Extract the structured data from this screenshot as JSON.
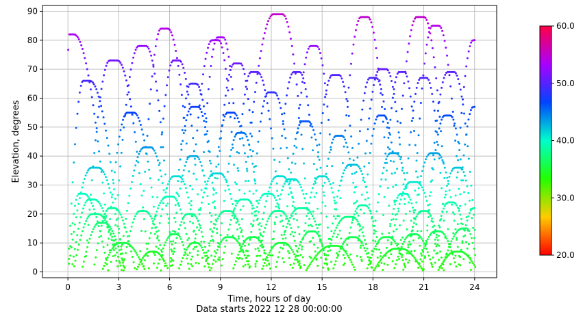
{
  "chart_data": {
    "type": "scatter",
    "xlabel": "Time, hours of day",
    "subtitle": "Data starts 2022 12 28 00:00:00",
    "ylabel": "Elevation, degrees",
    "xlim": [
      -1.5,
      25.3
    ],
    "ylim": [
      -2,
      92
    ],
    "xticks": [
      0,
      3,
      6,
      9,
      12,
      15,
      18,
      21,
      24
    ],
    "yticks": [
      0,
      10,
      20,
      30,
      40,
      50,
      60,
      70,
      80,
      90
    ],
    "grid": true,
    "colorbar": {
      "colormap": "gist_rainbow",
      "range": [
        20,
        60
      ],
      "ticks": [
        "20.0",
        "30.0",
        "40.0",
        "50.0",
        "60.0"
      ]
    },
    "tracks": [
      {
        "start": -0.05,
        "peak_time": 0.2,
        "peak": 82,
        "end": 2.6
      },
      {
        "start": 0.0,
        "peak_time": 1.1,
        "peak": 66,
        "end": 3.3
      },
      {
        "start": 0.0,
        "peak_time": 0.8,
        "peak": 27,
        "end": 2.4
      },
      {
        "start": 0.0,
        "peak_time": 1.6,
        "peak": 36,
        "end": 3.4
      },
      {
        "start": 0.2,
        "peak_time": 1.4,
        "peak": 25,
        "end": 3.0
      },
      {
        "start": 0.3,
        "peak_time": 1.6,
        "peak": 20,
        "end": 3.2
      },
      {
        "start": 0.8,
        "peak_time": 2.0,
        "peak": 17,
        "end": 3.4
      },
      {
        "start": 1.0,
        "peak_time": 2.7,
        "peak": 73,
        "end": 4.8
      },
      {
        "start": 1.5,
        "peak_time": 2.6,
        "peak": 22,
        "end": 4.0
      },
      {
        "start": 2.0,
        "peak_time": 3.2,
        "peak": 10,
        "end": 4.6
      },
      {
        "start": 2.2,
        "peak_time": 3.7,
        "peak": 55,
        "end": 5.5
      },
      {
        "start": 2.6,
        "peak_time": 4.4,
        "peak": 78,
        "end": 6.2
      },
      {
        "start": 3.0,
        "peak_time": 4.7,
        "peak": 43,
        "end": 6.3
      },
      {
        "start": 3.2,
        "peak_time": 4.4,
        "peak": 21,
        "end": 5.8
      },
      {
        "start": 4.0,
        "peak_time": 5.0,
        "peak": 7,
        "end": 6.0
      },
      {
        "start": 4.2,
        "peak_time": 5.7,
        "peak": 84,
        "end": 7.6
      },
      {
        "start": 4.4,
        "peak_time": 6.0,
        "peak": 26,
        "end": 7.4
      },
      {
        "start": 5.0,
        "peak_time": 6.4,
        "peak": 33,
        "end": 7.8
      },
      {
        "start": 5.2,
        "peak_time": 6.3,
        "peak": 13,
        "end": 7.2
      },
      {
        "start": 5.0,
        "peak_time": 6.4,
        "peak": 73,
        "end": 8.0
      },
      {
        "start": 6.0,
        "peak_time": 7.2,
        "peak": 20,
        "end": 8.4
      },
      {
        "start": 6.0,
        "peak_time": 7.5,
        "peak": 57,
        "end": 9.0
      },
      {
        "start": 6.0,
        "peak_time": 7.4,
        "peak": 40,
        "end": 8.8
      },
      {
        "start": 6.5,
        "peak_time": 7.5,
        "peak": 10,
        "end": 8.4
      },
      {
        "start": 6.2,
        "peak_time": 7.4,
        "peak": 65,
        "end": 9.0
      },
      {
        "start": 7.0,
        "peak_time": 8.7,
        "peak": 80,
        "end": 10.2
      },
      {
        "start": 7.2,
        "peak_time": 8.8,
        "peak": 34,
        "end": 10.4
      },
      {
        "start": 7.6,
        "peak_time": 9.0,
        "peak": 81,
        "end": 10.4
      },
      {
        "start": 8.0,
        "peak_time": 9.4,
        "peak": 21,
        "end": 10.8
      },
      {
        "start": 8.2,
        "peak_time": 9.6,
        "peak": 55,
        "end": 11.2
      },
      {
        "start": 8.4,
        "peak_time": 9.5,
        "peak": 12,
        "end": 10.8
      },
      {
        "start": 8.4,
        "peak_time": 10.0,
        "peak": 72,
        "end": 11.4
      },
      {
        "start": 8.8,
        "peak_time": 10.2,
        "peak": 48,
        "end": 11.6
      },
      {
        "start": 9.0,
        "peak_time": 10.4,
        "peak": 25,
        "end": 11.8
      },
      {
        "start": 9.6,
        "peak_time": 11.0,
        "peak": 69,
        "end": 12.8
      },
      {
        "start": 9.7,
        "peak_time": 10.9,
        "peak": 12,
        "end": 12.0
      },
      {
        "start": 10.0,
        "peak_time": 12.4,
        "peak": 89,
        "end": 14.4
      },
      {
        "start": 10.4,
        "peak_time": 11.8,
        "peak": 27,
        "end": 13.2
      },
      {
        "start": 10.6,
        "peak_time": 12.0,
        "peak": 62,
        "end": 13.6
      },
      {
        "start": 11.0,
        "peak_time": 12.4,
        "peak": 21,
        "end": 13.8
      },
      {
        "start": 11.0,
        "peak_time": 12.5,
        "peak": 33,
        "end": 14.0
      },
      {
        "start": 11.4,
        "peak_time": 12.6,
        "peak": 10,
        "end": 13.8
      },
      {
        "start": 11.8,
        "peak_time": 13.2,
        "peak": 32,
        "end": 14.8
      },
      {
        "start": 12.0,
        "peak_time": 13.5,
        "peak": 69,
        "end": 15.0
      },
      {
        "start": 12.2,
        "peak_time": 13.8,
        "peak": 22,
        "end": 15.4
      },
      {
        "start": 12.6,
        "peak_time": 14.0,
        "peak": 52,
        "end": 15.6
      },
      {
        "start": 13.0,
        "peak_time": 14.5,
        "peak": 78,
        "end": 16.0
      },
      {
        "start": 13.2,
        "peak_time": 14.4,
        "peak": 14,
        "end": 15.4
      },
      {
        "start": 13.6,
        "peak_time": 15.0,
        "peak": 33,
        "end": 16.4
      },
      {
        "start": 14.0,
        "peak_time": 15.7,
        "peak": 9,
        "end": 17.0
      },
      {
        "start": 14.2,
        "peak_time": 15.8,
        "peak": 68,
        "end": 17.4
      },
      {
        "start": 14.6,
        "peak_time": 16.0,
        "peak": 47,
        "end": 17.4
      },
      {
        "start": 15.0,
        "peak_time": 16.6,
        "peak": 19,
        "end": 18.0
      },
      {
        "start": 15.2,
        "peak_time": 16.8,
        "peak": 37,
        "end": 18.4
      },
      {
        "start": 15.6,
        "peak_time": 16.8,
        "peak": 12,
        "end": 18.0
      },
      {
        "start": 15.8,
        "peak_time": 17.5,
        "peak": 88,
        "end": 19.2
      },
      {
        "start": 16.2,
        "peak_time": 17.4,
        "peak": 23,
        "end": 18.6
      },
      {
        "start": 16.6,
        "peak_time": 18.0,
        "peak": 67,
        "end": 19.6
      },
      {
        "start": 17.0,
        "peak_time": 18.6,
        "peak": 70,
        "end": 20.2
      },
      {
        "start": 17.2,
        "peak_time": 18.5,
        "peak": 54,
        "end": 19.8
      },
      {
        "start": 17.6,
        "peak_time": 18.8,
        "peak": 12,
        "end": 20.0
      },
      {
        "start": 17.8,
        "peak_time": 19.2,
        "peak": 41,
        "end": 20.6
      },
      {
        "start": 18.0,
        "peak_time": 19.5,
        "peak": 8,
        "end": 21.0
      },
      {
        "start": 18.4,
        "peak_time": 19.7,
        "peak": 69,
        "end": 21.0
      },
      {
        "start": 18.6,
        "peak_time": 19.8,
        "peak": 27,
        "end": 21.0
      },
      {
        "start": 18.8,
        "peak_time": 20.4,
        "peak": 31,
        "end": 22.0
      },
      {
        "start": 19.0,
        "peak_time": 20.8,
        "peak": 88,
        "end": 22.6
      },
      {
        "start": 19.2,
        "peak_time": 20.4,
        "peak": 13,
        "end": 21.6
      },
      {
        "start": 19.6,
        "peak_time": 21.0,
        "peak": 67,
        "end": 22.4
      },
      {
        "start": 19.8,
        "peak_time": 21.0,
        "peak": 21,
        "end": 22.2
      },
      {
        "start": 20.0,
        "peak_time": 21.6,
        "peak": 41,
        "end": 23.2
      },
      {
        "start": 20.2,
        "peak_time": 21.7,
        "peak": 85,
        "end": 23.4
      },
      {
        "start": 20.6,
        "peak_time": 21.8,
        "peak": 14,
        "end": 23.0
      },
      {
        "start": 21.0,
        "peak_time": 22.4,
        "peak": 54,
        "end": 23.8
      },
      {
        "start": 21.0,
        "peak_time": 22.6,
        "peak": 69,
        "end": 24.2
      },
      {
        "start": 21.4,
        "peak_time": 22.6,
        "peak": 24,
        "end": 23.8
      },
      {
        "start": 21.6,
        "peak_time": 23.0,
        "peak": 36,
        "end": 24.2
      },
      {
        "start": 21.8,
        "peak_time": 23.0,
        "peak": 7,
        "end": 24.2
      },
      {
        "start": 22.0,
        "peak_time": 23.4,
        "peak": 15,
        "end": 24.2
      },
      {
        "start": 22.6,
        "peak_time": 24.0,
        "peak": 80,
        "end": 24.1
      },
      {
        "start": 22.8,
        "peak_time": 24.0,
        "peak": 57,
        "end": 24.1
      },
      {
        "start": 23.0,
        "peak_time": 24.0,
        "peak": 22,
        "end": 24.1
      }
    ]
  }
}
